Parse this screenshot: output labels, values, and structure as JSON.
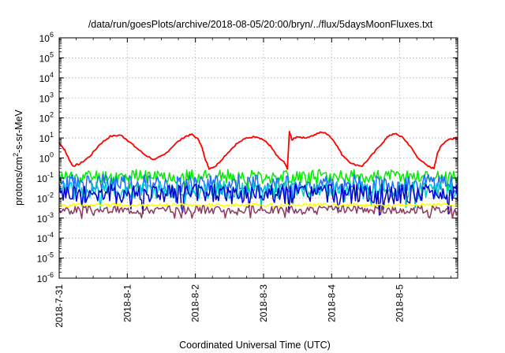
{
  "chart_data": {
    "type": "line",
    "title": "/data/run/goesPlots/archive/2018-08-05/20:00/bryn/../flux/5daysMoonFluxes.txt",
    "xlabel": "Coordinated Universal Time (UTC)",
    "ylabel": {
      "before": "protons/cm",
      "sup": "2",
      "after": "-s-sr-MeV"
    },
    "x_tick_labels": [
      "2018-7-31",
      "2018-8-1",
      "2018-8-2",
      "2018-8-3",
      "2018-8-4",
      "2018-8-5"
    ],
    "xlim_days": [
      0,
      5.85
    ],
    "y_scale": "log",
    "ylim": [
      1e-06,
      1000000
    ],
    "y_ticks": [
      {
        "value": 1e-06,
        "base": "10",
        "exp": "-6"
      },
      {
        "value": 1e-05,
        "base": "10",
        "exp": "-5"
      },
      {
        "value": 0.0001,
        "base": "10",
        "exp": "-4"
      },
      {
        "value": 0.001,
        "base": "10",
        "exp": "-3"
      },
      {
        "value": 0.01,
        "base": "10",
        "exp": "-2"
      },
      {
        "value": 0.1,
        "base": "10",
        "exp": "-1"
      },
      {
        "value": 1,
        "base": "10",
        "exp": "0"
      },
      {
        "value": 10,
        "base": "10",
        "exp": "1"
      },
      {
        "value": 100,
        "base": "10",
        "exp": "2"
      },
      {
        "value": 1000,
        "base": "10",
        "exp": "3"
      },
      {
        "value": 10000,
        "base": "10",
        "exp": "4"
      },
      {
        "value": 100000,
        "base": "10",
        "exp": "5"
      },
      {
        "value": 1000000,
        "base": "10",
        "exp": "6"
      }
    ],
    "grid": true,
    "legend": "none",
    "series": [
      {
        "color": "#ff0000",
        "x": [
          0.0,
          0.08,
          0.15,
          0.2,
          0.3,
          0.45,
          0.6,
          0.75,
          0.9,
          1.0,
          1.1,
          1.25,
          1.4,
          1.55,
          1.7,
          1.85,
          1.95,
          2.05,
          2.1,
          2.15,
          2.2,
          2.3,
          2.45,
          2.6,
          2.75,
          2.9,
          3.0,
          3.1,
          3.2,
          3.3,
          3.35,
          3.38,
          3.42,
          3.5,
          3.6,
          3.75,
          3.85,
          3.95,
          4.05,
          4.15,
          4.3,
          4.45,
          4.6,
          4.75,
          4.85,
          4.95,
          5.05,
          5.15,
          5.25,
          5.4,
          5.5,
          5.55,
          5.6,
          5.7,
          5.8,
          5.85
        ],
        "y": [
          6,
          2.5,
          0.8,
          0.4,
          0.5,
          1.2,
          5,
          12,
          14,
          8,
          4,
          1.5,
          0.8,
          1.5,
          5,
          12,
          15,
          8,
          3,
          0.8,
          0.3,
          0.4,
          1.5,
          5,
          10,
          12,
          8,
          4,
          1.2,
          0.6,
          0.3,
          20,
          8,
          12,
          10,
          14,
          20,
          15,
          6,
          1.5,
          0.5,
          0.4,
          1.5,
          6,
          14,
          16,
          10,
          4,
          1.2,
          0.4,
          0.3,
          1.5,
          4,
          8,
          10,
          11
        ]
      },
      {
        "color": "#00ee00",
        "base": 0.12,
        "amplitude": 0.35,
        "seed": 11
      },
      {
        "color": "#1e6eff",
        "base": 0.05,
        "amplitude": 0.5,
        "seed": 23
      },
      {
        "color": "#00c8c8",
        "base": 0.025,
        "amplitude": 0.45,
        "seed": 37
      },
      {
        "color": "#0000cc",
        "base": 0.016,
        "amplitude": 0.5,
        "seed": 41
      },
      {
        "color": "#ffff00",
        "base": 0.0045,
        "amplitude": 0.08,
        "seed": 53
      },
      {
        "color": "#8b3a62",
        "base": 0.0026,
        "amplitude": 0.2,
        "seed": 67
      }
    ]
  }
}
